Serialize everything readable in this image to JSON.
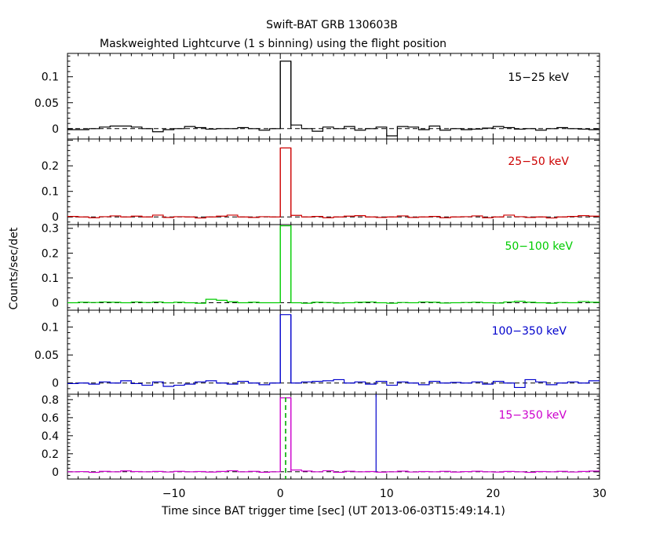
{
  "chart_data": {
    "type": "line",
    "title": "Swift-BAT GRB 130603B",
    "subtitle": "Maskweighted Lightcurve (1 s binning) using the flight position",
    "xlabel": "Time since BAT trigger time [sec] (UT 2013-06-03T15:49:14.1)",
    "ylabel": "Counts/sec/det",
    "xlim": [
      -20,
      30
    ],
    "x_ticks": [
      -10,
      0,
      10,
      20,
      30
    ],
    "x_tick_labels": [
      "−10",
      "0",
      "10",
      "20",
      "30"
    ],
    "bin_width_s": 1,
    "panels": [
      {
        "name": "15-25 keV",
        "label": "15−25 keV",
        "color": "#000000",
        "ylim": [
          -0.02,
          0.145
        ],
        "y_ticks": [
          0,
          0.05,
          0.1
        ],
        "y_tick_labels": [
          "0",
          "0.05",
          "0.1"
        ],
        "bin_start": -20,
        "values": [
          -0.002,
          -0.002,
          0.0,
          0.003,
          0.005,
          0.005,
          0.003,
          0.0,
          -0.006,
          -0.002,
          0.0,
          0.004,
          0.002,
          -0.001,
          0.0,
          0.0,
          0.002,
          0.0,
          -0.003,
          0.0,
          0.13,
          0.007,
          0.0,
          -0.005,
          0.003,
          0.0,
          0.004,
          -0.003,
          0.0,
          0.003,
          -0.014,
          0.004,
          0.003,
          -0.002,
          0.005,
          -0.003,
          0.0,
          -0.002,
          -0.001,
          0.001,
          0.004,
          0.002,
          -0.001,
          0.0,
          -0.003,
          0.0,
          0.002,
          0.0,
          -0.001,
          -0.002
        ]
      },
      {
        "name": "25-50 keV",
        "label": "25−50 keV",
        "color": "#cc0000",
        "ylim": [
          -0.03,
          0.305
        ],
        "y_ticks": [
          0,
          0.1,
          0.2
        ],
        "y_tick_labels": [
          "0",
          "0.1",
          "0.2"
        ],
        "bin_start": -20,
        "values": [
          0.002,
          0.0,
          -0.003,
          0.001,
          0.004,
          0.0,
          0.003,
          0.0,
          0.007,
          -0.002,
          0.001,
          0.0,
          -0.004,
          0.0,
          0.003,
          0.007,
          0.0,
          -0.002,
          0.001,
          0.0,
          0.27,
          0.006,
          0.0,
          0.002,
          -0.003,
          0.0,
          0.003,
          0.005,
          0.0,
          -0.002,
          0.0,
          0.004,
          -0.002,
          0.0,
          0.002,
          -0.003,
          0.0,
          0.001,
          0.004,
          -0.003,
          0.0,
          0.007,
          0.001,
          -0.002,
          0.0,
          -0.004,
          0.0,
          0.002,
          0.005,
          0.003
        ]
      },
      {
        "name": "50-100 keV",
        "label": "50−100 keV",
        "color": "#00cc00",
        "ylim": [
          -0.03,
          0.315
        ],
        "y_ticks": [
          0,
          0.1,
          0.2,
          0.3
        ],
        "y_tick_labels": [
          "0",
          "0.1",
          "0.2",
          "0.3"
        ],
        "bin_start": -20,
        "values": [
          0.0,
          0.002,
          0.001,
          0.003,
          0.002,
          0.0,
          0.003,
          0.001,
          0.003,
          0.0,
          0.002,
          0.0,
          -0.002,
          0.014,
          0.01,
          0.004,
          0.0,
          0.002,
          0.0,
          0.0,
          0.31,
          0.0,
          -0.002,
          0.002,
          0.001,
          -0.001,
          0.0,
          0.002,
          0.003,
          0.0,
          -0.002,
          0.001,
          0.0,
          0.003,
          0.002,
          -0.001,
          0.0,
          0.001,
          0.002,
          0.0,
          -0.001,
          0.003,
          0.006,
          0.002,
          0.0,
          -0.002,
          0.001,
          0.0,
          0.005,
          0.002
        ]
      },
      {
        "name": "100-350 keV",
        "label": "100−350 keV",
        "color": "#0000cc",
        "ylim": [
          -0.02,
          0.13
        ],
        "y_ticks": [
          0,
          0.05,
          0.1
        ],
        "y_tick_labels": [
          "0",
          "0.05",
          "0.1"
        ],
        "bin_start": -20,
        "values": [
          -0.001,
          0.0,
          -0.002,
          0.002,
          0.0,
          0.004,
          -0.001,
          -0.004,
          0.002,
          -0.006,
          -0.004,
          -0.002,
          0.002,
          0.004,
          0.0,
          -0.002,
          0.003,
          0.0,
          -0.003,
          0.0,
          0.122,
          0.0,
          0.002,
          0.003,
          0.004,
          0.006,
          0.0,
          0.002,
          -0.002,
          0.003,
          -0.004,
          0.002,
          0.0,
          -0.003,
          0.003,
          0.0,
          0.001,
          0.0,
          0.002,
          -0.002,
          0.003,
          0.0,
          -0.008,
          0.006,
          0.002,
          -0.003,
          0.0,
          0.002,
          0.0,
          0.004
        ]
      },
      {
        "name": "15-350 keV",
        "label": "15−350 keV",
        "color": "#cc00cc",
        "ylim": [
          -0.08,
          0.86
        ],
        "y_ticks": [
          0,
          0.2,
          0.4,
          0.6,
          0.8
        ],
        "y_tick_labels": [
          "0",
          "0.2",
          "0.4",
          "0.6",
          "0.8"
        ],
        "bin_start": -20,
        "values": [
          0.0,
          0.002,
          -0.006,
          0.005,
          0.0,
          0.01,
          0.003,
          0.0,
          0.004,
          -0.002,
          0.005,
          0.0,
          0.003,
          -0.003,
          0.004,
          0.012,
          0.0,
          0.005,
          -0.005,
          0.0,
          0.82,
          0.02,
          0.008,
          0.0,
          0.012,
          -0.005,
          0.006,
          0.0,
          0.003,
          -0.004,
          0.0,
          0.007,
          -0.002,
          0.003,
          0.0,
          0.005,
          -0.003,
          0.002,
          0.006,
          0.0,
          -0.003,
          0.004,
          0.0,
          -0.006,
          0.003,
          0.0,
          0.005,
          -0.002,
          0.004,
          0.008
        ],
        "dashed_marker_x": 0,
        "dashed_marker_color": "#00aa00",
        "vline_x": 9,
        "vline_color": "#0000cc"
      }
    ]
  }
}
